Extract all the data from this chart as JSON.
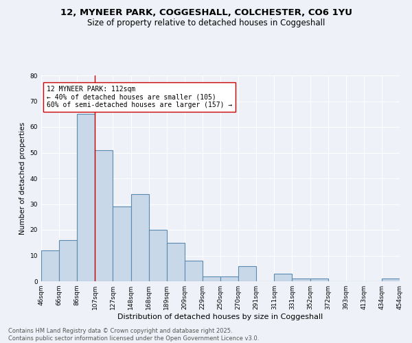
{
  "title": "12, MYNEER PARK, COGGESHALL, COLCHESTER, CO6 1YU",
  "subtitle": "Size of property relative to detached houses in Coggeshall",
  "xlabel": "Distribution of detached houses by size in Coggeshall",
  "ylabel": "Number of detached properties",
  "bar_values": [
    12,
    16,
    65,
    51,
    29,
    34,
    20,
    15,
    8,
    2,
    2,
    6,
    0,
    3,
    1,
    1,
    0,
    0,
    0,
    1
  ],
  "bar_labels": [
    "46sqm",
    "66sqm",
    "86sqm",
    "107sqm",
    "127sqm",
    "148sqm",
    "168sqm",
    "189sqm",
    "209sqm",
    "229sqm",
    "250sqm",
    "270sqm",
    "291sqm",
    "311sqm",
    "331sqm",
    "352sqm",
    "372sqm",
    "393sqm",
    "413sqm",
    "434sqm",
    "454sqm"
  ],
  "bar_color": "#c8d8e8",
  "bar_edge_color": "#5a8ab0",
  "bar_edge_width": 0.8,
  "marker_line_color": "#cc0000",
  "annotation_text": "12 MYNEER PARK: 112sqm\n← 40% of detached houses are smaller (105)\n60% of semi-detached houses are larger (157) →",
  "annotation_box_color": "#ffffff",
  "annotation_box_edge": "#cc0000",
  "ylim": [
    0,
    80
  ],
  "yticks": [
    0,
    10,
    20,
    30,
    40,
    50,
    60,
    70,
    80
  ],
  "background_color": "#eef2f8",
  "grid_color": "#ffffff",
  "footer_text": "Contains HM Land Registry data © Crown copyright and database right 2025.\nContains public sector information licensed under the Open Government Licence v3.0.",
  "title_fontsize": 9.5,
  "subtitle_fontsize": 8.5,
  "xlabel_fontsize": 8,
  "ylabel_fontsize": 7.5,
  "tick_fontsize": 6.5,
  "annotation_fontsize": 7,
  "footer_fontsize": 6
}
